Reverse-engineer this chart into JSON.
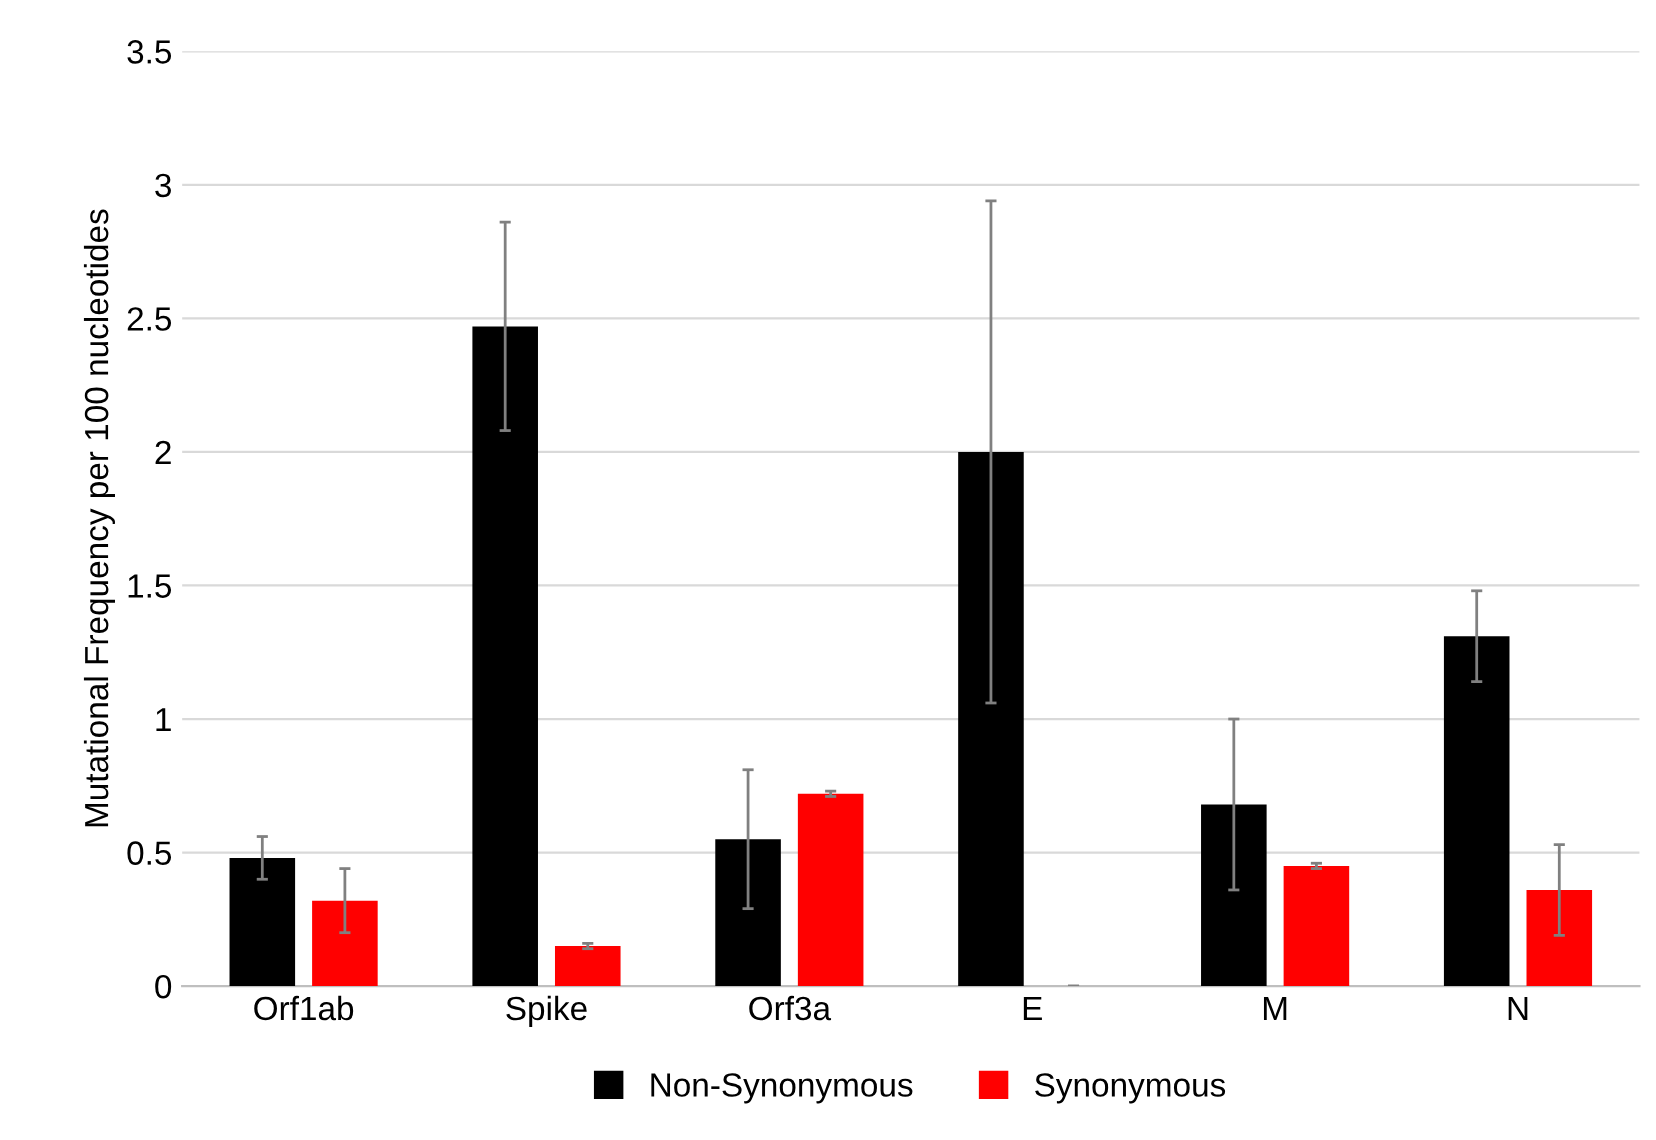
{
  "chart_data": {
    "type": "bar",
    "ylabel": "Mutational Frequency per 100 nucleotides",
    "categories": [
      "Orf1ab",
      "Spike",
      "Orf3a",
      "E",
      "M",
      "N"
    ],
    "series": [
      {
        "name": "Non-Synonymous",
        "color": "#000000",
        "values": [
          0.48,
          2.47,
          0.55,
          2.0,
          0.68,
          1.31
        ],
        "errors": [
          0.08,
          0.39,
          0.26,
          0.94,
          0.32,
          0.17
        ]
      },
      {
        "name": "Synonymous",
        "color": "#ff0000",
        "values": [
          0.32,
          0.15,
          0.72,
          0,
          0.45,
          0.36
        ],
        "errors": [
          0.12,
          0.01,
          0.01,
          0,
          0.01,
          0.17
        ]
      }
    ],
    "ylim": [
      0,
      3.5
    ],
    "yticks": [
      0,
      0.5,
      1,
      1.5,
      2,
      2.5,
      3,
      3.5
    ],
    "grid": "y",
    "legend": "bottom"
  }
}
